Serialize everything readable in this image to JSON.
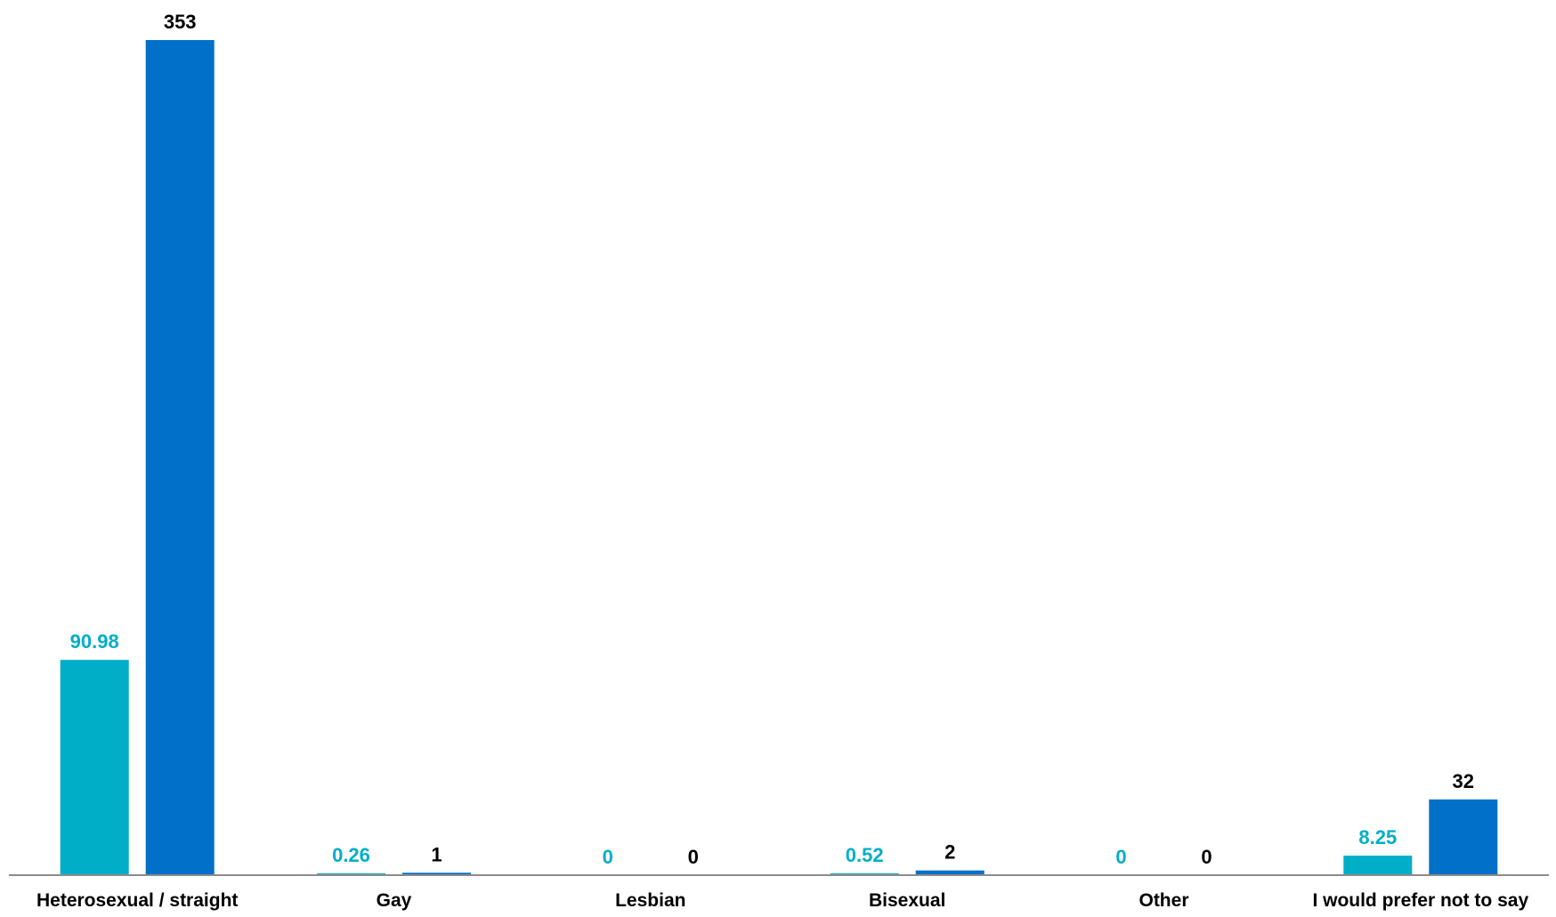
{
  "chart_data": {
    "type": "bar",
    "categories": [
      "Heterosexual / straight",
      "Gay",
      "Lesbian",
      "Bisexual",
      "Other",
      "I would prefer not to say"
    ],
    "series": [
      {
        "values": [
          90.98,
          0.26,
          0,
          0.52,
          0,
          8.25
        ],
        "color": "#00AEC7",
        "label_color": "#00AEC7"
      },
      {
        "values": [
          353,
          1,
          0,
          2,
          0,
          32
        ],
        "color": "#0070C8",
        "label_color": "#000000"
      }
    ],
    "value_labels": [
      [
        "90.98",
        "0.26",
        "0",
        "0.52",
        "0",
        "8.25"
      ],
      [
        "353",
        "1",
        "0",
        "2",
        "0",
        "32"
      ]
    ],
    "ylim": [
      0,
      353
    ],
    "grid": false,
    "legend": "none",
    "title": "",
    "xlabel": "",
    "ylabel": ""
  }
}
